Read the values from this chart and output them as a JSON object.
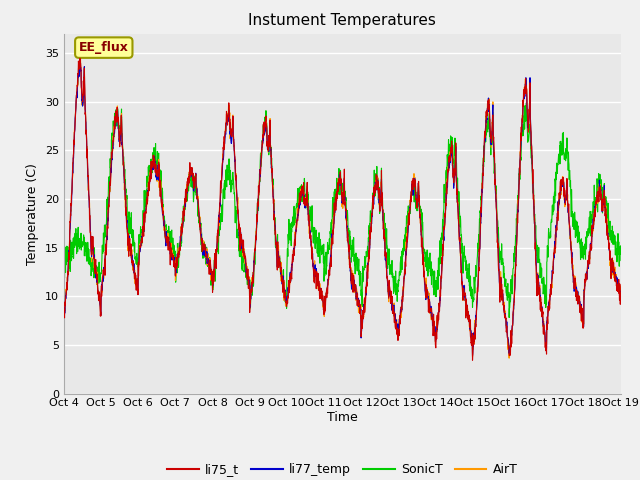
{
  "title": "Instument Temperatures",
  "ylabel": "Temperature (C)",
  "xlabel": "Time",
  "ylim": [
    0,
    37
  ],
  "yticks": [
    0,
    5,
    10,
    15,
    20,
    25,
    30,
    35
  ],
  "xtick_labels": [
    "Oct 4",
    "Oct 5",
    "Oct 6",
    "Oct 7",
    "Oct 8",
    "Oct 9",
    "Oct 10",
    "Oct 11",
    "Oct 12",
    "Oct 13",
    "Oct 14",
    "Oct 15",
    "Oct 16",
    "Oct 17",
    "Oct 18",
    "Oct 19"
  ],
  "annotation_text": "EE_flux",
  "colors": {
    "li75_t": "#cc0000",
    "li77_temp": "#0000cc",
    "SonicT": "#00cc00",
    "AirT": "#ff9900"
  },
  "bg_color": "#e8e8e8",
  "grid_color": "#ffffff",
  "title_fontsize": 11,
  "axis_fontsize": 9,
  "tick_fontsize": 8,
  "legend_fontsize": 9
}
